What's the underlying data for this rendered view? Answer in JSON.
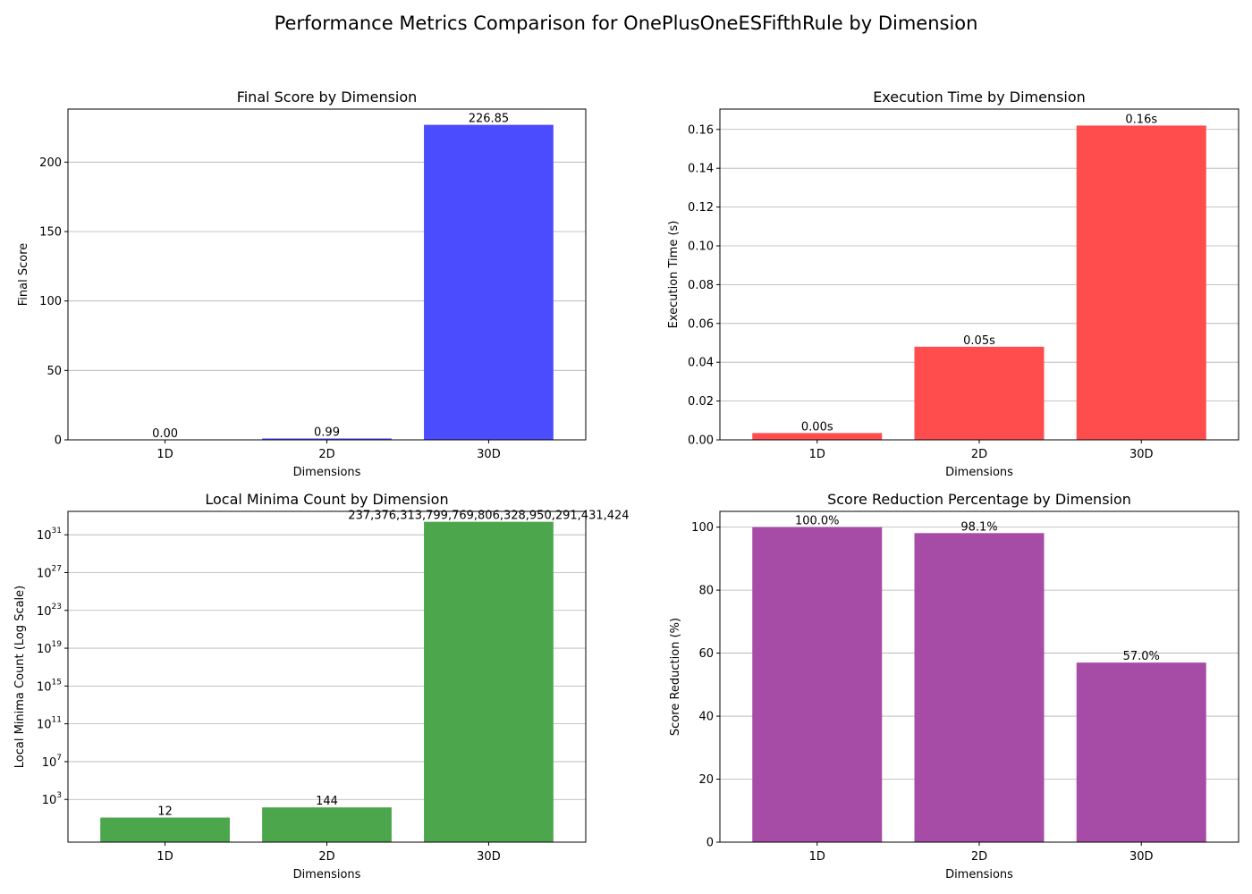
{
  "suptitle": "Performance Metrics Comparison for OnePlusOneESFifthRule by Dimension",
  "chart_data": [
    {
      "type": "bar",
      "title": "Final Score by Dimension",
      "xlabel": "Dimensions",
      "ylabel": "Final Score",
      "categories": [
        "1D",
        "2D",
        "30D"
      ],
      "values": [
        0.0,
        0.99,
        226.85
      ],
      "value_labels": [
        "0.00",
        "0.99",
        "226.85"
      ],
      "ylim": [
        0,
        238.2
      ],
      "yticks": [
        0,
        50,
        100,
        150,
        200
      ],
      "ytick_labels": [
        "0",
        "50",
        "100",
        "150",
        "200"
      ],
      "scale": "linear",
      "color": "#4c4cff",
      "grid": "y"
    },
    {
      "type": "bar",
      "title": "Execution Time by Dimension",
      "xlabel": "Dimensions",
      "ylabel": "Execution Time (s)",
      "categories": [
        "1D",
        "2D",
        "30D"
      ],
      "values": [
        0.0035,
        0.048,
        0.162
      ],
      "value_labels": [
        "0.00s",
        "0.05s",
        "0.16s"
      ],
      "ylim": [
        0,
        0.1705
      ],
      "yticks": [
        0,
        0.02,
        0.04,
        0.06,
        0.08,
        0.1,
        0.12,
        0.14,
        0.16
      ],
      "ytick_labels": [
        "0.00",
        "0.02",
        "0.04",
        "0.06",
        "0.08",
        "0.10",
        "0.12",
        "0.14",
        "0.16"
      ],
      "scale": "linear",
      "color": "#ff4c4c",
      "grid": "y"
    },
    {
      "type": "bar",
      "title": "Local Minima Count by Dimension",
      "xlabel": "Dimensions",
      "ylabel": "Local Minima Count (Log Scale)",
      "categories": [
        "1D",
        "2D",
        "30D"
      ],
      "values": [
        12,
        144,
        2.373763137997698e+32
      ],
      "value_labels": [
        "12",
        "144",
        "237,376,313,799,769,806,328,950,291,431,424"
      ],
      "ylim": [
        0.0302,
        3e+33
      ],
      "yticks": [
        1000.0,
        10000000.0,
        100000000000.0,
        1000000000000000.0,
        1e+19,
        1e+23,
        1e+27,
        1e+31
      ],
      "ytick_bases": [
        "10",
        "10",
        "10",
        "10",
        "10",
        "10",
        "10",
        "10"
      ],
      "ytick_exponents": [
        "3",
        "7",
        "11",
        "15",
        "19",
        "23",
        "27",
        "31"
      ],
      "scale": "log",
      "color": "#4ca64c",
      "grid": "y"
    },
    {
      "type": "bar",
      "title": "Score Reduction Percentage by Dimension",
      "xlabel": "Dimensions",
      "ylabel": "Score Reduction (%)",
      "categories": [
        "1D",
        "2D",
        "30D"
      ],
      "values": [
        100.0,
        98.1,
        57.0
      ],
      "value_labels": [
        "100.0%",
        "98.1%",
        "57.0%"
      ],
      "ylim": [
        0,
        105
      ],
      "yticks": [
        0,
        20,
        40,
        60,
        80,
        100
      ],
      "ytick_labels": [
        "0",
        "20",
        "40",
        "60",
        "80",
        "100"
      ],
      "scale": "linear",
      "color": "#a64ca6",
      "grid": "y"
    }
  ]
}
